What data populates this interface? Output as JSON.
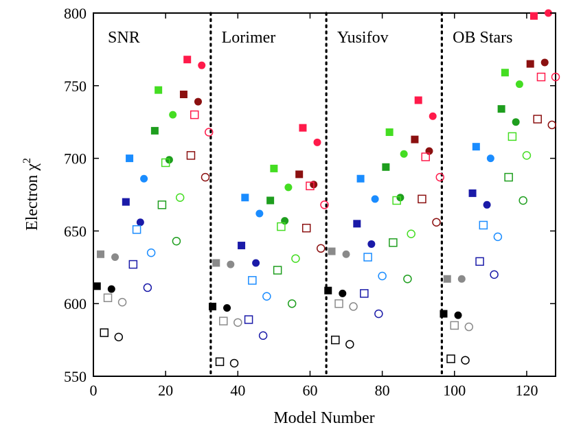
{
  "chart_data": {
    "type": "scatter",
    "xlabel": "Model Number",
    "ylabel": "Electron χ",
    "ylabel_superscript": "2",
    "xlim": [
      0,
      128
    ],
    "ylim": [
      550,
      800
    ],
    "x_ticks": [
      0,
      20,
      40,
      60,
      80,
      100,
      120
    ],
    "y_ticks": [
      550,
      600,
      650,
      700,
      750,
      800
    ],
    "grid": false,
    "legend": "none",
    "dividers": [
      32.5,
      64.5,
      96.5
    ],
    "region_labels": [
      {
        "text": "SNR",
        "x": 4
      },
      {
        "text": "Lorimer",
        "x": 35.5
      },
      {
        "text": "Yusifov",
        "x": 67.5
      },
      {
        "text": "OB Stars",
        "x": 99.5
      }
    ],
    "colors": {
      "black": "#000000",
      "gray": "#8a8a8a",
      "navy": "#1a1aa8",
      "blue": "#1a8cff",
      "green": "#1e9e1e",
      "lime": "#44dd22",
      "darkred": "#8b1010",
      "red": "#ff1a4a"
    },
    "series": [
      {
        "marker": "square",
        "fill": "filled",
        "color": "black",
        "x": [
          1,
          33,
          65,
          97
        ],
        "y": [
          612,
          598,
          609,
          593
        ]
      },
      {
        "marker": "circle",
        "fill": "filled",
        "color": "black",
        "x": [
          5,
          37,
          69,
          101
        ],
        "y": [
          610,
          597,
          607,
          592
        ]
      },
      {
        "marker": "square",
        "fill": "open",
        "color": "black",
        "x": [
          3,
          35,
          67,
          99
        ],
        "y": [
          580,
          560,
          575,
          562
        ]
      },
      {
        "marker": "circle",
        "fill": "open",
        "color": "black",
        "x": [
          7,
          39,
          71,
          103
        ],
        "y": [
          577,
          559,
          572,
          561
        ]
      },
      {
        "marker": "square",
        "fill": "filled",
        "color": "gray",
        "x": [
          2,
          34,
          66,
          98
        ],
        "y": [
          634,
          628,
          636,
          617
        ]
      },
      {
        "marker": "circle",
        "fill": "filled",
        "color": "gray",
        "x": [
          6,
          38,
          70,
          102
        ],
        "y": [
          632,
          627,
          634,
          617
        ]
      },
      {
        "marker": "square",
        "fill": "open",
        "color": "gray",
        "x": [
          4,
          36,
          68,
          100
        ],
        "y": [
          604,
          588,
          600,
          585
        ]
      },
      {
        "marker": "circle",
        "fill": "open",
        "color": "gray",
        "x": [
          8,
          40,
          72,
          104
        ],
        "y": [
          601,
          587,
          598,
          584
        ]
      },
      {
        "marker": "square",
        "fill": "filled",
        "color": "navy",
        "x": [
          9,
          41,
          73,
          105
        ],
        "y": [
          670,
          640,
          655,
          676
        ]
      },
      {
        "marker": "circle",
        "fill": "filled",
        "color": "navy",
        "x": [
          13,
          45,
          77,
          109
        ],
        "y": [
          656,
          628,
          641,
          668
        ]
      },
      {
        "marker": "square",
        "fill": "open",
        "color": "navy",
        "x": [
          11,
          43,
          75,
          107
        ],
        "y": [
          627,
          589,
          607,
          629
        ]
      },
      {
        "marker": "circle",
        "fill": "open",
        "color": "navy",
        "x": [
          15,
          47,
          79,
          111
        ],
        "y": [
          611,
          578,
          593,
          620
        ]
      },
      {
        "marker": "square",
        "fill": "filled",
        "color": "blue",
        "x": [
          10,
          42,
          74,
          106
        ],
        "y": [
          700,
          673,
          686,
          708
        ]
      },
      {
        "marker": "circle",
        "fill": "filled",
        "color": "blue",
        "x": [
          14,
          46,
          78,
          110
        ],
        "y": [
          686,
          662,
          672,
          700
        ]
      },
      {
        "marker": "square",
        "fill": "open",
        "color": "blue",
        "x": [
          12,
          44,
          76,
          108
        ],
        "y": [
          651,
          616,
          632,
          654
        ]
      },
      {
        "marker": "circle",
        "fill": "open",
        "color": "blue",
        "x": [
          16,
          48,
          80,
          112
        ],
        "y": [
          635,
          605,
          619,
          646
        ]
      },
      {
        "marker": "square",
        "fill": "filled",
        "color": "green",
        "x": [
          17,
          49,
          81,
          113
        ],
        "y": [
          719,
          671,
          694,
          734
        ]
      },
      {
        "marker": "circle",
        "fill": "filled",
        "color": "green",
        "x": [
          21,
          53,
          85,
          117
        ],
        "y": [
          699,
          657,
          673,
          725
        ]
      },
      {
        "marker": "square",
        "fill": "open",
        "color": "green",
        "x": [
          19,
          51,
          83,
          115
        ],
        "y": [
          668,
          623,
          642,
          687
        ]
      },
      {
        "marker": "circle",
        "fill": "open",
        "color": "green",
        "x": [
          23,
          55,
          87,
          119
        ],
        "y": [
          643,
          600,
          617,
          671
        ]
      },
      {
        "marker": "square",
        "fill": "filled",
        "color": "lime",
        "x": [
          18,
          50,
          82,
          114
        ],
        "y": [
          747,
          693,
          718,
          759
        ]
      },
      {
        "marker": "circle",
        "fill": "filled",
        "color": "lime",
        "x": [
          22,
          54,
          86,
          118
        ],
        "y": [
          730,
          680,
          703,
          751
        ]
      },
      {
        "marker": "square",
        "fill": "open",
        "color": "lime",
        "x": [
          20,
          52,
          84,
          116
        ],
        "y": [
          697,
          653,
          671,
          715
        ]
      },
      {
        "marker": "circle",
        "fill": "open",
        "color": "lime",
        "x": [
          24,
          56,
          88,
          120
        ],
        "y": [
          673,
          631,
          648,
          702
        ]
      },
      {
        "marker": "square",
        "fill": "filled",
        "color": "darkred",
        "x": [
          25,
          57,
          89,
          121
        ],
        "y": [
          744,
          689,
          713,
          765
        ]
      },
      {
        "marker": "circle",
        "fill": "filled",
        "color": "darkred",
        "x": [
          29,
          61,
          93,
          125
        ],
        "y": [
          739,
          682,
          705,
          766
        ]
      },
      {
        "marker": "square",
        "fill": "open",
        "color": "darkred",
        "x": [
          27,
          59,
          91,
          123
        ],
        "y": [
          702,
          652,
          672,
          727
        ]
      },
      {
        "marker": "circle",
        "fill": "open",
        "color": "darkred",
        "x": [
          31,
          63,
          95,
          127
        ],
        "y": [
          687,
          638,
          656,
          723
        ]
      },
      {
        "marker": "square",
        "fill": "filled",
        "color": "red",
        "x": [
          26,
          58,
          90,
          122
        ],
        "y": [
          768,
          721,
          740,
          798
        ]
      },
      {
        "marker": "circle",
        "fill": "filled",
        "color": "red",
        "x": [
          30,
          62,
          94,
          126
        ],
        "y": [
          764,
          711,
          729,
          800
        ]
      },
      {
        "marker": "square",
        "fill": "open",
        "color": "red",
        "x": [
          28,
          60,
          92,
          124
        ],
        "y": [
          730,
          681,
          701,
          756
        ]
      },
      {
        "marker": "circle",
        "fill": "open",
        "color": "red",
        "x": [
          32,
          64,
          96,
          128
        ],
        "y": [
          718,
          668,
          687,
          756
        ]
      }
    ]
  }
}
